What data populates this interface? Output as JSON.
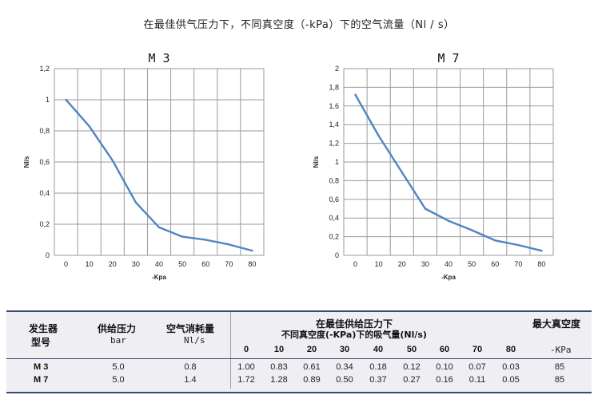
{
  "page_title": "在最佳供气压力下，不同真空度（-kPa）下的空气流量（Nl / s）",
  "chart_data": [
    {
      "type": "line",
      "title": "M 3",
      "xlabel": "-Kpa",
      "ylabel": "Nl/s",
      "x": [
        0,
        10,
        20,
        30,
        40,
        50,
        60,
        70,
        80
      ],
      "x_tick_labels": [
        "0",
        "10",
        "20",
        "30",
        "40",
        "50",
        "60",
        "70",
        "80"
      ],
      "y_tick_labels": [
        "0",
        "0,2",
        "0,4",
        "0,6",
        "0,8",
        "1",
        "1,2"
      ],
      "xlim": [
        -5,
        85
      ],
      "ylim": [
        0,
        1.2
      ],
      "grid": true,
      "series": [
        {
          "values": [
            1.0,
            0.83,
            0.61,
            0.34,
            0.18,
            0.12,
            0.1,
            0.07,
            0.03
          ]
        }
      ],
      "colors": {
        "line": "#4f86c0",
        "grid": "#9a9a9a"
      }
    },
    {
      "type": "line",
      "title": "M 7",
      "xlabel": "-Kpa",
      "ylabel": "Nl/s",
      "x": [
        0,
        10,
        20,
        30,
        40,
        50,
        60,
        70,
        80
      ],
      "x_tick_labels": [
        "0",
        "10",
        "20",
        "30",
        "40",
        "50",
        "60",
        "70",
        "80"
      ],
      "y_tick_labels": [
        "0",
        "0,2",
        "0,4",
        "0,6",
        "0,8",
        "1",
        "1,2",
        "1,4",
        "1,6",
        "1,8",
        "2"
      ],
      "xlim": [
        -5,
        85
      ],
      "ylim": [
        0,
        2
      ],
      "grid": true,
      "series": [
        {
          "values": [
            1.72,
            1.28,
            0.89,
            0.5,
            0.37,
            0.27,
            0.16,
            0.11,
            0.05
          ]
        }
      ],
      "colors": {
        "line": "#4f86c0",
        "grid": "#9a9a9a"
      }
    }
  ],
  "spec_table": {
    "headers": {
      "generator": "发生器",
      "model_type": "型号",
      "supply_pressure": "供给压力",
      "supply_pressure_unit": "bar",
      "air_consumption": "空气消耗量",
      "air_consumption_unit": "Nl/s",
      "group_line1": "在最佳供给压力下",
      "group_line2": "不同真空度(-KPa)下的吸气量(Nl/s)",
      "max_vacuum": "最大真空度",
      "max_vacuum_unit": "-KPa"
    },
    "vacuum_columns": [
      "0",
      "10",
      "20",
      "30",
      "40",
      "50",
      "60",
      "70",
      "80"
    ],
    "rows": [
      {
        "model": "M 3",
        "pressure": "5.0",
        "consumption": "0.8",
        "flows": [
          "1.00",
          "0.83",
          "0.61",
          "0.34",
          "0.18",
          "0.12",
          "0.10",
          "0.07",
          "0.03"
        ],
        "max_vacuum": "85"
      },
      {
        "model": "M 7",
        "pressure": "5.0",
        "consumption": "1.4",
        "flows": [
          "1.72",
          "1.28",
          "0.89",
          "0.50",
          "0.37",
          "0.27",
          "0.16",
          "0.11",
          "0.05"
        ],
        "max_vacuum": "85"
      }
    ],
    "colors": {
      "background": "#efeff3",
      "rule": "#3a4a6a"
    }
  }
}
